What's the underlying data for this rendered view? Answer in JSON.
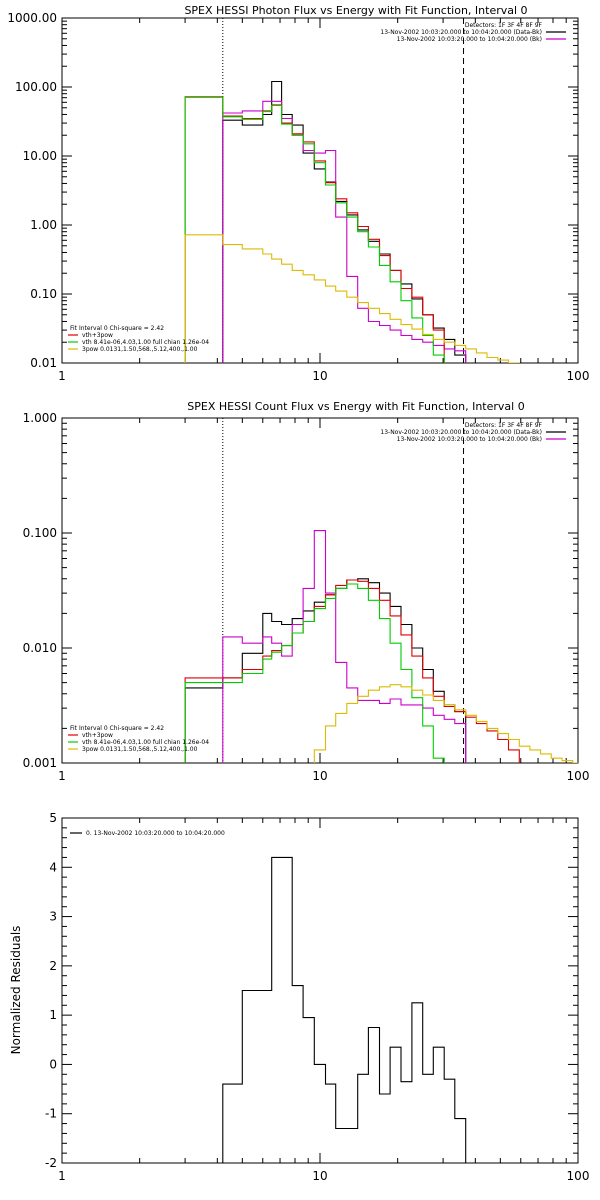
{
  "chart_data": [
    {
      "id": "photon",
      "type": "line",
      "title": "SPEX HESSI Photon Flux vs Energy with Fit Function, Interval 0",
      "xscale": "log",
      "yscale": "log",
      "xlim": [
        1,
        100
      ],
      "ylim": [
        0.01,
        1000
      ],
      "xticks": [
        {
          "v": 1,
          "label": "1"
        },
        {
          "v": 10,
          "label": "10"
        },
        {
          "v": 100,
          "label": "100"
        }
      ],
      "yticks": [
        {
          "v": 0.01,
          "label": "0.01"
        },
        {
          "v": 0.1,
          "label": "0.10"
        },
        {
          "v": 1,
          "label": "1.00"
        },
        {
          "v": 10,
          "label": "10.00"
        },
        {
          "v": 100,
          "label": "100.00"
        },
        {
          "v": 1000,
          "label": "1000.00"
        }
      ],
      "ylabel": "",
      "vlines": [
        {
          "x": 4.2,
          "style": "dotted"
        },
        {
          "x": 36,
          "style": "dashed"
        }
      ],
      "legend_top": {
        "placement": "top-right",
        "header": "Detectors: 1F 3F 4F 8F 9F",
        "entries": [
          {
            "label": "13-Nov-2002 10:03:20.000 to 10:04:20.000 (Data-Bk)",
            "color": "#000000"
          },
          {
            "label": "13-Nov-2002 10:03:20.000 to 10:04:20.000 (Bk)",
            "color": "#cc00cc"
          }
        ]
      },
      "legend_bottom": {
        "placement": "bottom-left",
        "header": "Fit Interval 0   Chi-square = 2.42",
        "entries": [
          {
            "label": "vth+3pow",
            "color": "#dd0000"
          },
          {
            "label": "vth 8.41e-06,4.03,1.00   full chian 1.26e-04",
            "color": "#00cc00"
          },
          {
            "label": "3pow 0.0131,1.50,568.,5.12,400.,1.00",
            "color": "#ddbb00"
          }
        ]
      },
      "series": [
        {
          "key": "data",
          "color": "#000000",
          "edges": [
            4.2,
            5,
            6,
            6.5,
            7.1,
            7.8,
            8.6,
            9.5,
            10.5,
            11.5,
            12.7,
            14,
            15.4,
            17,
            18.7,
            20.6,
            22.7,
            25,
            27.5,
            30.3,
            33.3,
            36.7
          ],
          "values": [
            33,
            28,
            40,
            120,
            40,
            28,
            11,
            6.5,
            4.2,
            2.2,
            1.4,
            0.85,
            0.58,
            0.38,
            0.22,
            0.14,
            0.085,
            0.05,
            0.032,
            0.022,
            0.013
          ]
        },
        {
          "key": "background",
          "color": "#cc00cc",
          "edges": [
            4.2,
            5,
            6,
            6.5,
            7.1,
            7.8,
            8.6,
            9.5,
            10.5,
            11.5,
            12.7,
            14,
            15.4,
            17,
            18.7,
            20.6,
            22.7,
            25,
            27.5,
            30.3,
            33.3,
            36.7
          ],
          "values": [
            42,
            45,
            62,
            62,
            35,
            20,
            12,
            11,
            12,
            1.3,
            0.18,
            0.062,
            0.04,
            0.035,
            0.03,
            0.025,
            0.022,
            0.02,
            0.018,
            0.016,
            0.015
          ]
        },
        {
          "key": "total_fit",
          "color": "#dd0000",
          "edges": [
            3,
            4.2,
            5,
            6,
            6.5,
            7.1,
            7.8,
            8.6,
            9.5,
            10.5,
            11.5,
            12.7,
            14,
            15.4,
            17,
            18.7,
            20.6,
            22.7,
            25,
            27.5,
            30.3
          ],
          "values": [
            72,
            38,
            35,
            45,
            55,
            30,
            21,
            16,
            8.5,
            4.1,
            2.4,
            1.5,
            0.95,
            0.62,
            0.36,
            0.22,
            0.12,
            0.09,
            0.05,
            0.03
          ]
        },
        {
          "key": "thermal",
          "color": "#00cc00",
          "edges": [
            3,
            4.2,
            5,
            6,
            6.5,
            7.1,
            7.8,
            8.6,
            9.5,
            10.5,
            11.5,
            12.7,
            14,
            15.4,
            17,
            18.7,
            20.6,
            22.7,
            25,
            27.5,
            30.3
          ],
          "values": [
            71,
            37,
            34,
            44,
            54,
            29,
            20,
            15,
            8,
            3.8,
            2.1,
            1.3,
            0.8,
            0.48,
            0.26,
            0.15,
            0.08,
            0.045,
            0.025,
            0.013
          ]
        },
        {
          "key": "powerlaw",
          "color": "#ddbb00",
          "edges": [
            3,
            4.2,
            5,
            6,
            6.5,
            7.1,
            7.8,
            8.6,
            9.5,
            10.5,
            11.5,
            12.7,
            14,
            15.4,
            17,
            18.7,
            20.6,
            22.7,
            25,
            27.5,
            30.3,
            33.3,
            36.7,
            40.4,
            44.4,
            48.9,
            53.8,
            59.2
          ],
          "values": [
            0.72,
            0.52,
            0.45,
            0.38,
            0.32,
            0.27,
            0.22,
            0.19,
            0.16,
            0.13,
            0.11,
            0.09,
            0.075,
            0.062,
            0.052,
            0.043,
            0.036,
            0.031,
            0.026,
            0.022,
            0.02,
            0.018,
            0.016,
            0.014,
            0.012,
            0.011,
            0.01
          ]
        }
      ]
    },
    {
      "id": "count",
      "type": "line",
      "title": "SPEX HESSI Count Flux vs Energy with Fit Function, Interval 0",
      "xscale": "log",
      "yscale": "log",
      "xlim": [
        1,
        100
      ],
      "ylim": [
        0.001,
        1
      ],
      "xticks": [
        {
          "v": 1,
          "label": "1"
        },
        {
          "v": 10,
          "label": "10"
        },
        {
          "v": 100,
          "label": "100"
        }
      ],
      "yticks": [
        {
          "v": 0.001,
          "label": "0.001"
        },
        {
          "v": 0.01,
          "label": "0.010"
        },
        {
          "v": 0.1,
          "label": "0.100"
        },
        {
          "v": 1,
          "label": "1.000"
        }
      ],
      "ylabel": "",
      "vlines": [
        {
          "x": 4.2,
          "style": "dotted"
        },
        {
          "x": 36,
          "style": "dashed"
        }
      ],
      "legend_top": {
        "placement": "top-right",
        "header": "Detectors: 1F 3F 4F 8F 9F",
        "entries": [
          {
            "label": "13-Nov-2002 10:03:20.000 to 10:04:20.000 (Data-Bk)",
            "color": "#000000"
          },
          {
            "label": "13-Nov-2002 10:03:20.000 to 10:04:20.000 (Bk)",
            "color": "#cc00cc"
          }
        ]
      },
      "legend_bottom": {
        "placement": "bottom-left",
        "header": "Fit Interval 0   Chi-square = 2.42",
        "entries": [
          {
            "label": "vth+3pow",
            "color": "#dd0000"
          },
          {
            "label": "vth 8.41e-06,4.03,1.00   full chian 1.26e-04",
            "color": "#00cc00"
          },
          {
            "label": "3pow 0.0131,1.50,568.,5.12,400.,1.00",
            "color": "#ddbb00"
          }
        ]
      },
      "series": [
        {
          "key": "data",
          "color": "#000000",
          "edges": [
            3,
            4.2,
            5,
            6,
            6.5,
            7.1,
            7.8,
            8.6,
            9.5,
            10.5,
            11.5,
            12.7,
            14,
            15.4,
            17,
            18.7,
            20.6,
            22.7,
            25,
            27.5,
            30.3,
            33.3,
            36.7
          ],
          "values": [
            0.0045,
            0.0055,
            0.009,
            0.02,
            0.017,
            0.016,
            0.018,
            0.021,
            0.025,
            0.029,
            0.033,
            0.039,
            0.04,
            0.037,
            0.03,
            0.023,
            0.016,
            0.01,
            0.0065,
            0.0042,
            0.0032,
            0.0028
          ]
        },
        {
          "key": "background",
          "color": "#cc00cc",
          "edges": [
            4.2,
            5,
            6,
            6.5,
            7.1,
            7.8,
            8.6,
            9.5,
            10.5,
            11.5,
            12.7,
            14,
            15.4,
            17,
            18.7,
            20.6,
            22.7,
            25,
            27.5,
            30.3,
            33.3,
            36.7
          ],
          "values": [
            0.0125,
            0.011,
            0.0125,
            0.011,
            0.0085,
            0.016,
            0.033,
            0.105,
            0.03,
            0.0075,
            0.0045,
            0.0035,
            0.0035,
            0.0033,
            0.0036,
            0.0032,
            0.0032,
            0.003,
            0.0026,
            0.0024,
            0.0022
          ]
        },
        {
          "key": "total_fit",
          "color": "#dd0000",
          "edges": [
            3,
            4.2,
            5,
            6,
            6.5,
            7.1,
            7.8,
            8.6,
            9.5,
            10.5,
            11.5,
            12.7,
            14,
            15.4,
            17,
            18.7,
            20.6,
            22.7,
            25,
            27.5,
            30.3,
            33.3,
            36.7,
            40.4,
            44.4,
            48.9,
            53.8,
            59.2
          ],
          "values": [
            0.0055,
            0.0055,
            0.0065,
            0.0085,
            0.0095,
            0.0105,
            0.0135,
            0.017,
            0.023,
            0.029,
            0.035,
            0.039,
            0.038,
            0.033,
            0.026,
            0.019,
            0.013,
            0.0085,
            0.0055,
            0.0038,
            0.0031,
            0.0028,
            0.0025,
            0.0022,
            0.0019,
            0.0016,
            0.0013
          ]
        },
        {
          "key": "thermal",
          "color": "#00cc00",
          "edges": [
            3,
            4.2,
            5,
            6,
            6.5,
            7.1,
            7.8,
            8.6,
            9.5,
            10.5,
            11.5,
            12.7,
            14,
            15.4,
            17,
            18.7,
            20.6,
            22.7,
            25,
            27.5,
            30.3
          ],
          "values": [
            0.005,
            0.005,
            0.006,
            0.008,
            0.0092,
            0.0105,
            0.0135,
            0.017,
            0.022,
            0.027,
            0.033,
            0.036,
            0.033,
            0.026,
            0.018,
            0.011,
            0.0065,
            0.0037,
            0.0021,
            0.0011
          ]
        },
        {
          "key": "powerlaw",
          "color": "#ddbb00",
          "edges": [
            9.5,
            10.5,
            11.5,
            12.7,
            14,
            15.4,
            17,
            18.7,
            20.6,
            22.7,
            25,
            27.5,
            30.3,
            33.3,
            36.7,
            40.4,
            44.4,
            48.9,
            53.8,
            59.2,
            65.1,
            71.6,
            78.8,
            86.7,
            95.4,
            100
          ],
          "values": [
            0.0013,
            0.0021,
            0.0027,
            0.0033,
            0.0038,
            0.0043,
            0.0046,
            0.0048,
            0.0046,
            0.0043,
            0.0039,
            0.0035,
            0.0032,
            0.0029,
            0.0026,
            0.0023,
            0.002,
            0.0018,
            0.0016,
            0.0014,
            0.0013,
            0.0012,
            0.0011,
            0.00105,
            0.001
          ]
        }
      ]
    },
    {
      "id": "residuals",
      "type": "line",
      "title": "",
      "xscale": "log",
      "yscale": "linear",
      "xlim": [
        1,
        100
      ],
      "ylim": [
        -2,
        5
      ],
      "xticks": [
        {
          "v": 1,
          "label": "1"
        },
        {
          "v": 10,
          "label": "10"
        },
        {
          "v": 100,
          "label": "100"
        }
      ],
      "yticks": [
        {
          "v": -2,
          "label": "-2"
        },
        {
          "v": -1,
          "label": "-1"
        },
        {
          "v": 0,
          "label": "0"
        },
        {
          "v": 1,
          "label": "1"
        },
        {
          "v": 2,
          "label": "2"
        },
        {
          "v": 3,
          "label": "3"
        },
        {
          "v": 4,
          "label": "4"
        },
        {
          "v": 5,
          "label": "5"
        }
      ],
      "ylabel": "Normalized Residuals",
      "vlines": [],
      "legend_top": {
        "placement": "top-left",
        "header": "",
        "entries": [
          {
            "label": "0. 13-Nov-2002 10:03:20.000 to 10:04:20.000",
            "color": "#000000"
          }
        ]
      },
      "legend_bottom": null,
      "series": [
        {
          "key": "residual",
          "color": "#000000",
          "edges": [
            4.2,
            5,
            6,
            6.5,
            7.1,
            7.8,
            8.6,
            9.5,
            10.5,
            11.5,
            12.7,
            14,
            15.4,
            17,
            18.7,
            20.6,
            22.7,
            25,
            27.5,
            30.3,
            33.3,
            36.7
          ],
          "values": [
            -0.4,
            1.5,
            1.5,
            4.2,
            4.2,
            1.6,
            0.95,
            0.0,
            -0.4,
            -1.3,
            -1.3,
            -0.2,
            0.75,
            -0.6,
            0.35,
            -0.35,
            1.25,
            -0.2,
            0.35,
            -0.3,
            -1.1
          ],
          "drop_to": -2
        }
      ]
    }
  ]
}
